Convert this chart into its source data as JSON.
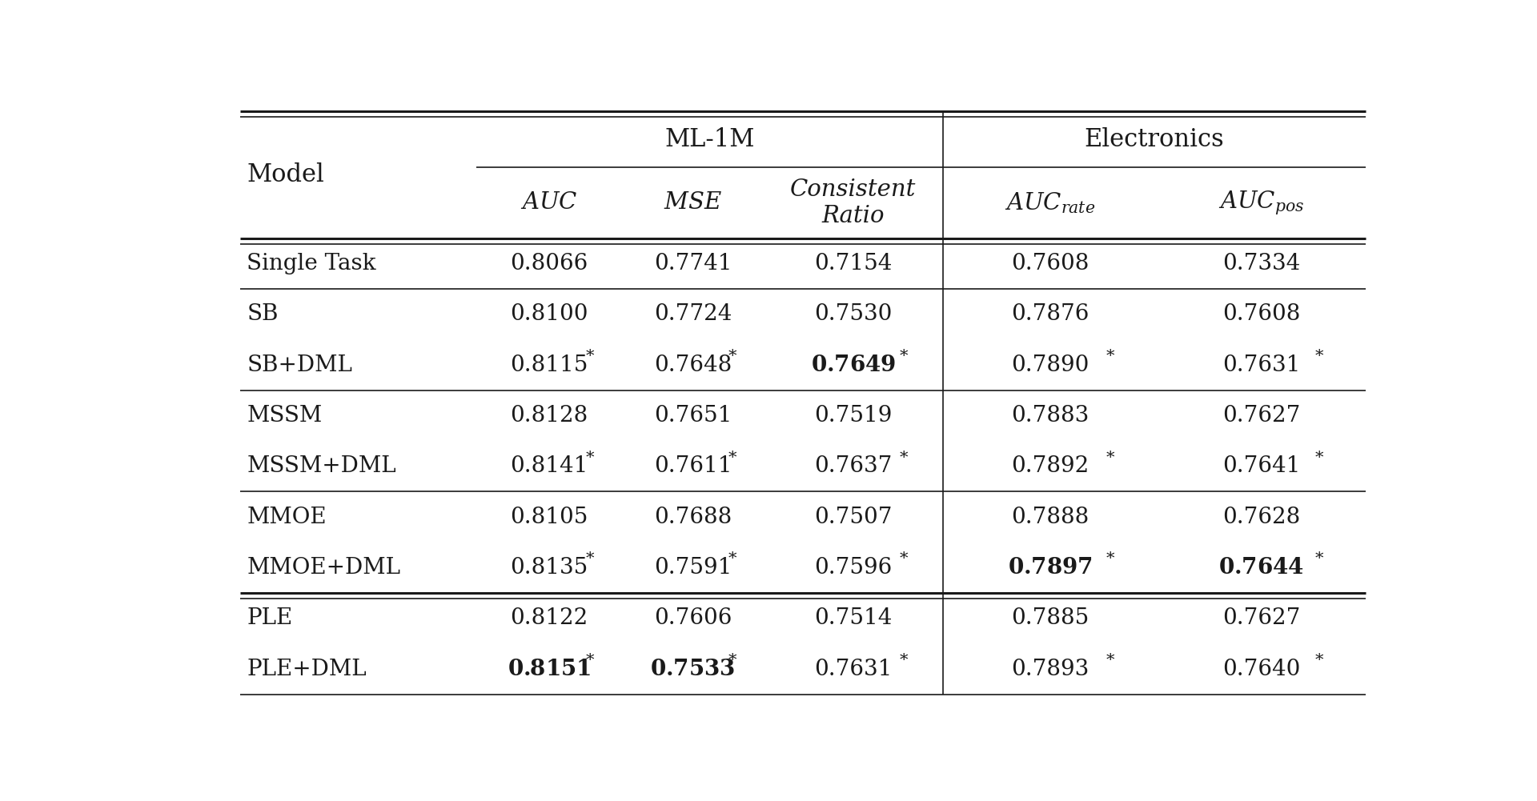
{
  "background_color": "#ffffff",
  "group1_header": "ML-1M",
  "group2_header": "Electronics",
  "text_color": "#1a1a1a",
  "line_color": "#1a1a1a",
  "font_size": 20,
  "rows": [
    {
      "group": "single",
      "model": "Single Task",
      "vals": [
        "0.8066",
        "0.7741",
        "0.7154",
        "0.7608",
        "0.7334"
      ],
      "bold": [
        false,
        false,
        false,
        false,
        false
      ],
      "star": [
        false,
        false,
        false,
        false,
        false
      ]
    },
    {
      "group": "SB",
      "model": "SB",
      "vals": [
        "0.8100",
        "0.7724",
        "0.7530",
        "0.7876",
        "0.7608"
      ],
      "bold": [
        false,
        false,
        false,
        false,
        false
      ],
      "star": [
        false,
        false,
        false,
        false,
        false
      ]
    },
    {
      "group": "SB",
      "model": "SB+DML",
      "vals": [
        "0.8115",
        "0.7648",
        "0.7649",
        "0.7890",
        "0.7631"
      ],
      "bold": [
        false,
        false,
        true,
        false,
        false
      ],
      "star": [
        true,
        true,
        true,
        true,
        true
      ]
    },
    {
      "group": "MSSM",
      "model": "MSSM",
      "vals": [
        "0.8128",
        "0.7651",
        "0.7519",
        "0.7883",
        "0.7627"
      ],
      "bold": [
        false,
        false,
        false,
        false,
        false
      ],
      "star": [
        false,
        false,
        false,
        false,
        false
      ]
    },
    {
      "group": "MSSM",
      "model": "MSSM+DML",
      "vals": [
        "0.8141",
        "0.7611",
        "0.7637",
        "0.7892",
        "0.7641"
      ],
      "bold": [
        false,
        false,
        false,
        false,
        false
      ],
      "star": [
        true,
        true,
        true,
        true,
        true
      ]
    },
    {
      "group": "MMOE",
      "model": "MMOE",
      "vals": [
        "0.8105",
        "0.7688",
        "0.7507",
        "0.7888",
        "0.7628"
      ],
      "bold": [
        false,
        false,
        false,
        false,
        false
      ],
      "star": [
        false,
        false,
        false,
        false,
        false
      ]
    },
    {
      "group": "MMOE",
      "model": "MMOE+DML",
      "vals": [
        "0.8135",
        "0.7591",
        "0.7596",
        "0.7897",
        "0.7644"
      ],
      "bold": [
        false,
        false,
        false,
        true,
        true
      ],
      "star": [
        true,
        true,
        true,
        true,
        true
      ]
    },
    {
      "group": "PLE",
      "model": "PLE",
      "vals": [
        "0.8122",
        "0.7606",
        "0.7514",
        "0.7885",
        "0.7627"
      ],
      "bold": [
        false,
        false,
        false,
        false,
        false
      ],
      "star": [
        false,
        false,
        false,
        false,
        false
      ]
    },
    {
      "group": "PLE",
      "model": "PLE+DML",
      "vals": [
        "0.8151",
        "0.7533",
        "0.7631",
        "0.7893",
        "0.7640"
      ],
      "bold": [
        true,
        true,
        false,
        false,
        false
      ],
      "star": [
        true,
        true,
        true,
        true,
        true
      ]
    }
  ]
}
